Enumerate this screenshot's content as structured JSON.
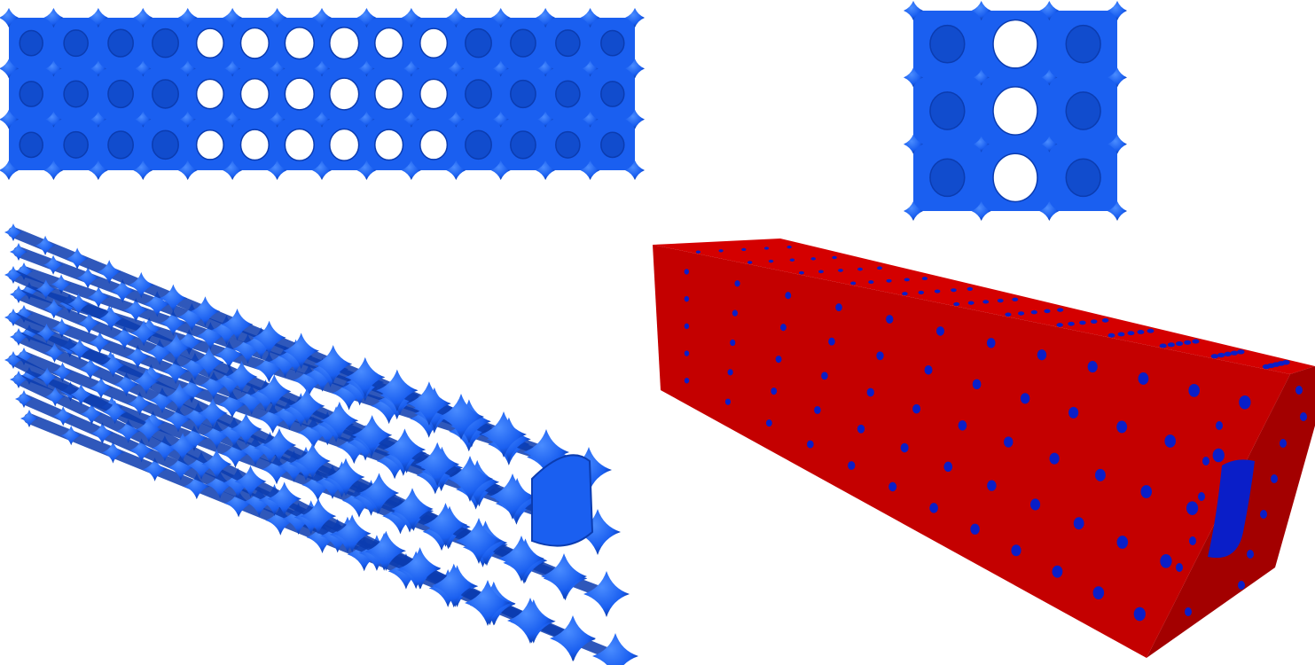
{
  "colors": {
    "lattice": "#1a5ff0",
    "lattice_dark": "#0b3cb0",
    "lattice_light": "#3f7fff",
    "solid_face_front": "#c40000",
    "solid_face_side": "#a30000",
    "solid_face_top": "#d40000",
    "pore": "#0a1ec8",
    "background": "#ffffff"
  },
  "panels": {
    "lattice_side_view": {
      "rows": 3,
      "columns": 14
    },
    "lattice_end_view": {
      "rows": 3,
      "columns": 3
    },
    "lattice_perspective_view": {
      "rows": 3,
      "columns": 14
    },
    "solid_block_view": {
      "front_rows": 5,
      "front_columns": 12
    }
  }
}
